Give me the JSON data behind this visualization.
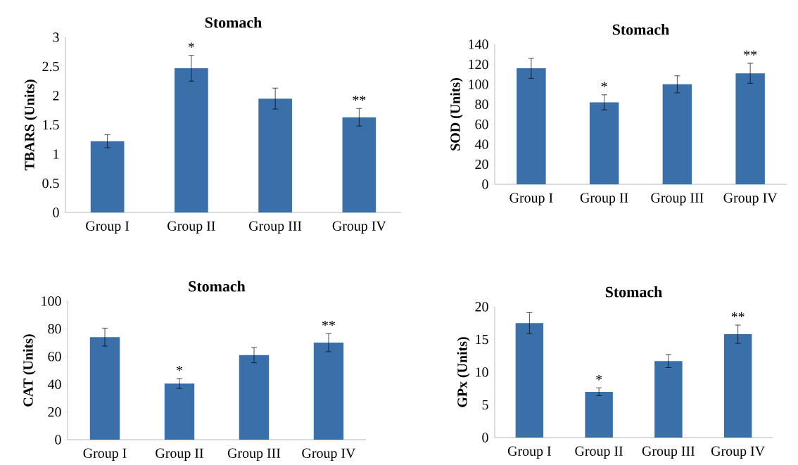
{
  "chart_data": [
    {
      "type": "bar",
      "title": "Stomach",
      "ylabel": "TBARS (Units)",
      "categories": [
        "Group I",
        "Group II",
        "Group III",
        "Group IV"
      ],
      "values": [
        1.22,
        2.47,
        1.95,
        1.63
      ],
      "errors": [
        0.11,
        0.22,
        0.18,
        0.15
      ],
      "color": "#3a70aa",
      "ylim": [
        0,
        3
      ],
      "yticks": [
        0,
        0.5,
        1,
        1.5,
        2,
        2.5,
        3
      ],
      "value_labels": [
        null,
        "*",
        null,
        "**"
      ]
    },
    {
      "type": "bar",
      "title": "Stomach",
      "ylabel": "SOD (Units)",
      "categories": [
        "Group I",
        "Group II",
        "Group III",
        "Group IV"
      ],
      "values": [
        116,
        82,
        100,
        111
      ],
      "errors": [
        10,
        7.5,
        8.5,
        10
      ],
      "color": "#3a70aa",
      "ylim": [
        0,
        140
      ],
      "yticks": [
        0,
        20,
        40,
        60,
        80,
        100,
        120,
        140
      ],
      "value_labels": [
        null,
        "*",
        null,
        "**"
      ]
    },
    {
      "type": "bar",
      "title": "Stomach",
      "ylabel": "CAT (Units)",
      "categories": [
        "Group I",
        "Group II",
        "Group III",
        "Group IV"
      ],
      "values": [
        74,
        40.5,
        61,
        70
      ],
      "errors": [
        6.5,
        3.5,
        5.5,
        6.5
      ],
      "color": "#3a70aa",
      "ylim": [
        0,
        100
      ],
      "yticks": [
        0,
        20,
        40,
        60,
        80,
        100
      ],
      "value_labels": [
        null,
        "*",
        null,
        "**"
      ]
    },
    {
      "type": "bar",
      "title": "Stomach",
      "ylabel": "GPx (Units)",
      "categories": [
        "Group I",
        "Group II",
        "Group III",
        "Group IV"
      ],
      "values": [
        17.5,
        7,
        11.7,
        15.8
      ],
      "errors": [
        1.6,
        0.6,
        1.0,
        1.4
      ],
      "color": "#3a70aa",
      "ylim": [
        0,
        20
      ],
      "yticks": [
        0,
        5,
        10,
        15,
        20
      ],
      "value_labels": [
        null,
        "*",
        null,
        "**"
      ]
    }
  ]
}
